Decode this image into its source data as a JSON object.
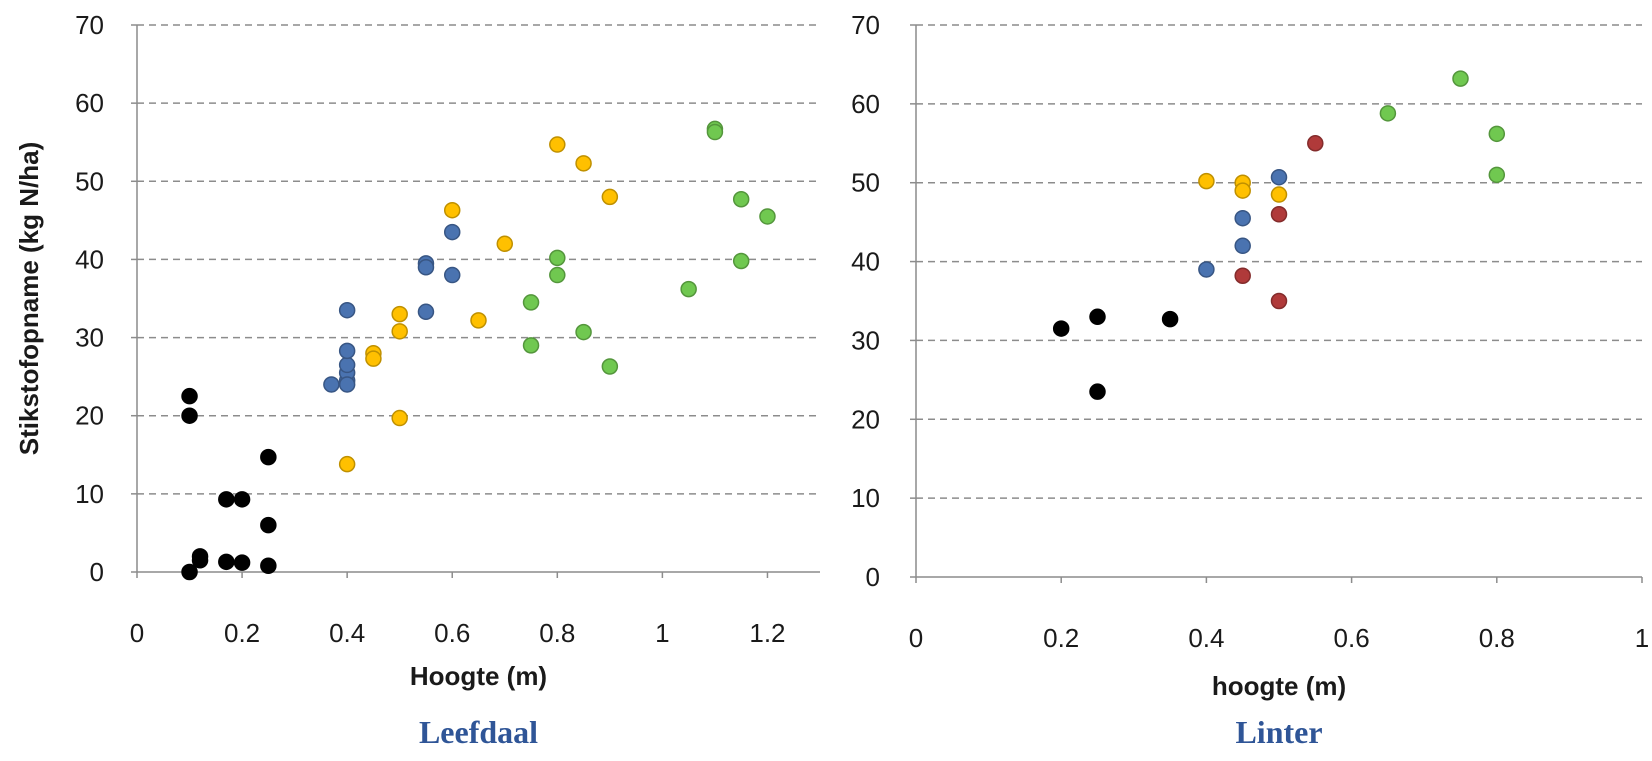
{
  "colors": {
    "black": "#000000",
    "blue": "#4a73b0",
    "orange": "#ffc000",
    "green": "#70c850",
    "red": "#b03a3a",
    "caption": "#2f5597"
  },
  "chart_data": [
    {
      "type": "scatter",
      "caption": "Leefdaal",
      "xlabel": "Hoogte (m)",
      "ylabel": "Stikstofopname (kg N/ha)",
      "xlim": [
        0,
        1.3
      ],
      "ylim": [
        0,
        70
      ],
      "xticks": [
        "0",
        "0.2",
        "0.4",
        "0.6",
        "0.8",
        "1",
        "1.2"
      ],
      "yticks": [
        "0",
        "10",
        "20",
        "30",
        "40",
        "50",
        "60",
        "70"
      ],
      "grid": "horizontal-dashed",
      "series": [
        {
          "color": "#000000",
          "x": [
            0.1,
            0.1,
            0.1,
            0.12,
            0.12,
            0.17,
            0.17,
            0.2,
            0.2,
            0.25,
            0.25,
            0.25
          ],
          "y": [
            22.5,
            20.0,
            0.0,
            1.5,
            2.0,
            9.3,
            1.3,
            9.3,
            1.2,
            14.7,
            6.0,
            0.8
          ]
        },
        {
          "color": "#4a73b0",
          "x": [
            0.37,
            0.4,
            0.4,
            0.4,
            0.4,
            0.4,
            0.4,
            0.55,
            0.55,
            0.55,
            0.6,
            0.6
          ],
          "y": [
            24.0,
            24.5,
            25.5,
            26.5,
            28.3,
            33.5,
            24.0,
            39.5,
            39.0,
            33.3,
            43.5,
            38.0
          ]
        },
        {
          "color": "#ffc000",
          "x": [
            0.4,
            0.45,
            0.45,
            0.5,
            0.5,
            0.5,
            0.6,
            0.65,
            0.7,
            0.8,
            0.85,
            0.9
          ],
          "y": [
            13.8,
            28.0,
            27.3,
            33.0,
            30.8,
            19.7,
            46.3,
            32.2,
            42.0,
            54.7,
            52.3,
            48.0
          ]
        },
        {
          "color": "#70c850",
          "x": [
            0.75,
            0.75,
            0.8,
            0.8,
            0.85,
            0.9,
            1.05,
            1.1,
            1.1,
            1.15,
            1.15,
            1.2
          ],
          "y": [
            34.5,
            29.0,
            40.2,
            38.0,
            30.7,
            26.3,
            36.2,
            56.7,
            56.3,
            47.7,
            39.8,
            45.5
          ]
        }
      ]
    },
    {
      "type": "scatter",
      "caption": "Linter",
      "xlabel": "hoogte (m)",
      "ylabel": "",
      "xlim": [
        0,
        1
      ],
      "ylim": [
        0,
        70
      ],
      "xticks": [
        "0",
        "0.2",
        "0.4",
        "0.6",
        "0.8",
        "1"
      ],
      "yticks": [
        "0",
        "10",
        "20",
        "30",
        "40",
        "50",
        "60",
        "70"
      ],
      "grid": "horizontal-dashed",
      "series": [
        {
          "color": "#000000",
          "x": [
            0.2,
            0.25,
            0.25,
            0.35
          ],
          "y": [
            31.5,
            33.0,
            23.5,
            32.7
          ]
        },
        {
          "color": "#4a73b0",
          "x": [
            0.4,
            0.45,
            0.45,
            0.5
          ],
          "y": [
            39.0,
            45.5,
            42.0,
            50.7
          ]
        },
        {
          "color": "#ffc000",
          "x": [
            0.4,
            0.45,
            0.45,
            0.5
          ],
          "y": [
            50.2,
            50.0,
            49.0,
            48.5
          ]
        },
        {
          "color": "#b03a3a",
          "x": [
            0.45,
            0.5,
            0.5,
            0.55
          ],
          "y": [
            38.2,
            46.0,
            35.0,
            55.0
          ]
        },
        {
          "color": "#70c850",
          "x": [
            0.65,
            0.75,
            0.8,
            0.8
          ],
          "y": [
            58.8,
            63.2,
            56.2,
            51.0
          ]
        }
      ]
    }
  ]
}
